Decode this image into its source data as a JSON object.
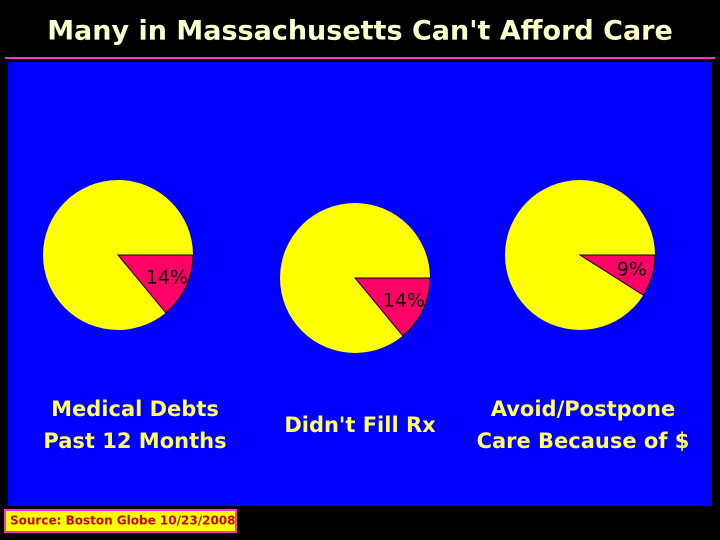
{
  "title": "Many in Massachusetts Can't Afford Care",
  "source": "Source: Boston Globe 10/23/2008",
  "chart_data": [
    {
      "type": "pie",
      "title": [
        "Medical Debts",
        "Past 12 Months"
      ],
      "values": [
        14
      ],
      "value_labels": [
        "14%"
      ],
      "color": "#ff0066",
      "base_color": "#ffff00"
    },
    {
      "type": "pie",
      "title": [
        "Didn't Fill Rx"
      ],
      "values": [
        14
      ],
      "value_labels": [
        "14%"
      ],
      "color": "#ff0066",
      "base_color": "#ffff00"
    },
    {
      "type": "pie",
      "title": [
        "Avoid/Postpone",
        "Care Because of $"
      ],
      "values": [
        9
      ],
      "value_labels": [
        "9%"
      ],
      "color": "#ff0066",
      "base_color": "#ffff00"
    }
  ]
}
